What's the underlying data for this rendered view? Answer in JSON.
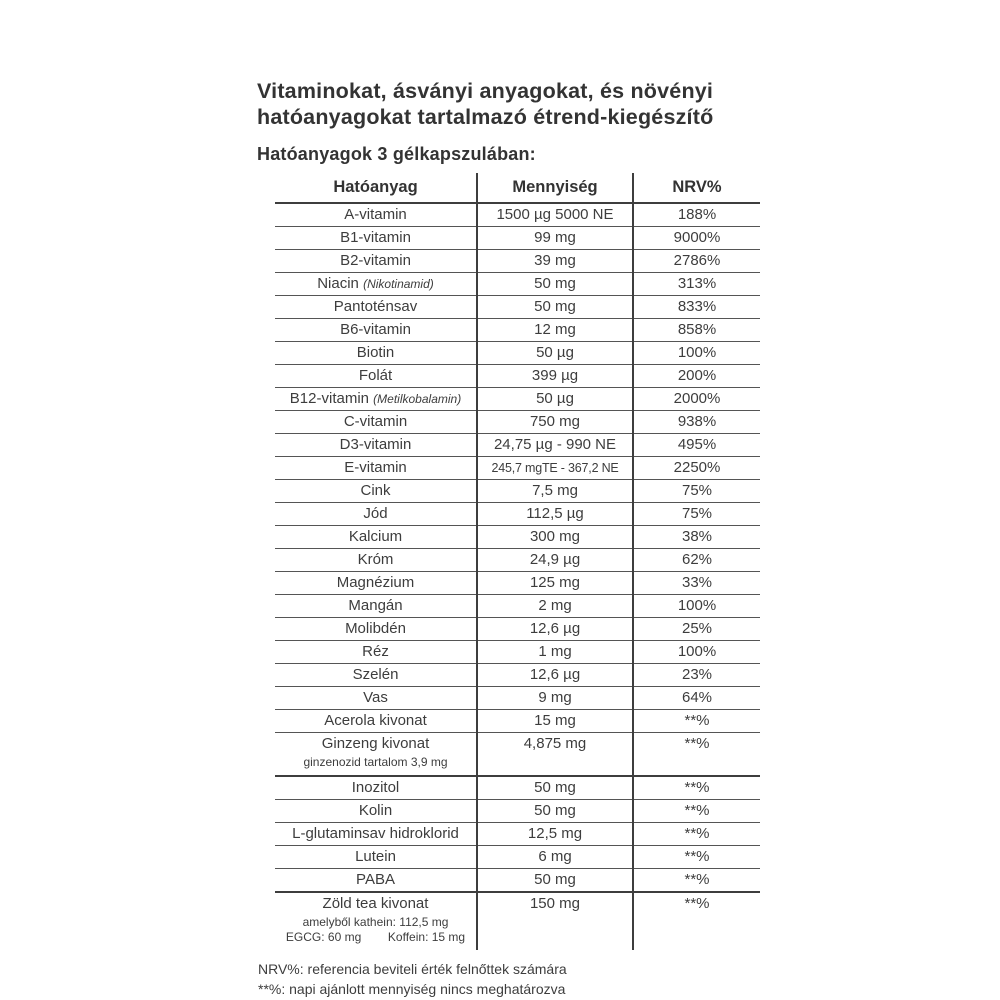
{
  "document": {
    "title_lines": [
      "Vitaminokat, ásványi anyagokat, és növényi",
      "hatóanyagokat tartalmazó étrend-kiegészítő"
    ],
    "subtitle": "Hatóanyagok 3 gélkapszulában:",
    "footnotes": [
      "NRV%: referencia beviteli érték felnőttek számára",
      "**%: napi ajánlott mennyiség nincs meghatározva"
    ]
  },
  "table": {
    "headers": [
      "Hatóanyag",
      "Mennyiség",
      "NRV%"
    ],
    "rows": [
      {
        "name": "A-vitamin",
        "amount": "1500 µg 5000 NE",
        "nrv": "188%"
      },
      {
        "name": "B1-vitamin",
        "amount": "99 mg",
        "nrv": "9000%"
      },
      {
        "name": "B2-vitamin",
        "amount": "39 mg",
        "nrv": "2786%"
      },
      {
        "name": "Niacin",
        "note": "(Nikotinamid)",
        "amount": "50 mg",
        "nrv": "313%"
      },
      {
        "name": "Pantoténsav",
        "amount": "50 mg",
        "nrv": "833%"
      },
      {
        "name": "B6-vitamin",
        "amount": "12 mg",
        "nrv": "858%"
      },
      {
        "name": "Biotin",
        "amount": "50 µg",
        "nrv": "100%"
      },
      {
        "name": "Folát",
        "amount": "399 µg",
        "nrv": "200%"
      },
      {
        "name": "B12-vitamin",
        "note": "(Metilkobalamin)",
        "amount": "50 µg",
        "nrv": "2000%"
      },
      {
        "name": "C-vitamin",
        "amount": "750 mg",
        "nrv": "938%"
      },
      {
        "name": "D3-vitamin",
        "amount": "24,75 µg - 990 NE",
        "nrv": "495%"
      },
      {
        "name": "E-vitamin",
        "amount": "245,7 mgTE - 367,2 NE",
        "nrv": "2250%",
        "amount_small": true
      },
      {
        "name": "Cink",
        "amount": "7,5 mg",
        "nrv": "75%"
      },
      {
        "name": "Jód",
        "amount": "112,5 µg",
        "nrv": "75%"
      },
      {
        "name": "Kalcium",
        "amount": "300 mg",
        "nrv": "38%"
      },
      {
        "name": "Króm",
        "amount": "24,9 µg",
        "nrv": "62%"
      },
      {
        "name": "Magnézium",
        "amount": "125 mg",
        "nrv": "33%"
      },
      {
        "name": "Mangán",
        "amount": "2 mg",
        "nrv": "100%"
      },
      {
        "name": "Molibdén",
        "amount": "12,6 µg",
        "nrv": "25%"
      },
      {
        "name": "Réz",
        "amount": "1 mg",
        "nrv": "100%"
      },
      {
        "name": "Szelén",
        "amount": "12,6 µg",
        "nrv": "23%"
      },
      {
        "name": "Vas",
        "amount": "9 mg",
        "nrv": "64%"
      },
      {
        "name": "Acerola kivonat",
        "amount": "15 mg",
        "nrv": "**%"
      },
      {
        "name": "Ginzeng kivonat",
        "sub": [
          "ginzenozid tartalom 3,9 mg"
        ],
        "amount": "4,875 mg",
        "nrv": "**%",
        "border_bottom": "thick"
      },
      {
        "name": "Inozitol",
        "amount": "50 mg",
        "nrv": "**%"
      },
      {
        "name": "Kolin",
        "amount": "50 mg",
        "nrv": "**%"
      },
      {
        "name": "L-glutaminsav hidroklorid",
        "amount": "12,5 mg",
        "nrv": "**%"
      },
      {
        "name": "Lutein",
        "amount": "6 mg",
        "nrv": "**%"
      },
      {
        "name": "PABA",
        "amount": "50 mg",
        "nrv": "**%",
        "border_bottom": "thick"
      },
      {
        "name": "Zöld tea kivonat",
        "sub": [
          "amelyből kathein: 112,5 mg",
          "EGCG: 60 mg        Koffein: 15 mg"
        ],
        "amount": "150 mg",
        "nrv": "**%",
        "no_border": true
      }
    ]
  }
}
